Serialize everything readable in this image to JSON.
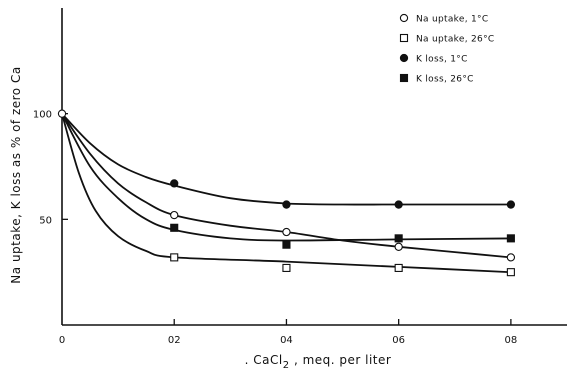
{
  "chart_data": {
    "type": "scatter",
    "title": "",
    "xlabel": ". CaCl2 , meq. per liter",
    "xlabel_main": ". CaCl",
    "xlabel_sub": "2",
    "xlabel_tail": " , meq. per liter",
    "ylabel": "Na uptake, K loss as % of zero Ca",
    "xlim": [
      0,
      0.09
    ],
    "ylim": [
      0,
      150
    ],
    "x_ticks": [
      0,
      0.02,
      0.04,
      0.06,
      0.08
    ],
    "x_tick_labels": [
      "0",
      "02",
      "04",
      "06",
      "08"
    ],
    "y_ticks": [
      50,
      100
    ],
    "y_tick_labels": [
      "50",
      "100"
    ],
    "legend_position": "top-right",
    "series": [
      {
        "name": "Na uptake, 1°C",
        "marker": "open-circle",
        "x": [
          0,
          0.02,
          0.04,
          0.06,
          0.08
        ],
        "y": [
          100,
          52,
          44,
          37,
          32
        ],
        "curve": [
          [
            0,
            100
          ],
          [
            0.005,
            81
          ],
          [
            0.01,
            67
          ],
          [
            0.015,
            58
          ],
          [
            0.02,
            52
          ],
          [
            0.03,
            47
          ],
          [
            0.04,
            44
          ],
          [
            0.05,
            40
          ],
          [
            0.06,
            37
          ],
          [
            0.07,
            34.5
          ],
          [
            0.08,
            32
          ]
        ]
      },
      {
        "name": "Na uptake, 26°C",
        "marker": "open-square",
        "x": [
          0,
          0.02,
          0.04,
          0.06,
          0.08
        ],
        "y": [
          100,
          32,
          27,
          27,
          25
        ],
        "curve": [
          [
            0,
            100
          ],
          [
            0.003,
            72
          ],
          [
            0.006,
            54
          ],
          [
            0.01,
            42
          ],
          [
            0.015,
            35
          ],
          [
            0.02,
            32
          ],
          [
            0.04,
            30
          ],
          [
            0.06,
            27.5
          ],
          [
            0.08,
            25
          ]
        ]
      },
      {
        "name": "K loss, 1°C",
        "marker": "filled-circle",
        "x": [
          0,
          0.02,
          0.04,
          0.06,
          0.08
        ],
        "y": [
          100,
          67,
          57,
          57,
          57
        ],
        "curve": [
          [
            0,
            100
          ],
          [
            0.005,
            86
          ],
          [
            0.01,
            76
          ],
          [
            0.015,
            70
          ],
          [
            0.02,
            66
          ],
          [
            0.03,
            60
          ],
          [
            0.04,
            57.5
          ],
          [
            0.05,
            57
          ],
          [
            0.06,
            57
          ],
          [
            0.08,
            57
          ]
        ]
      },
      {
        "name": "K loss, 26°C",
        "marker": "filled-square",
        "x": [
          0,
          0.02,
          0.04,
          0.06,
          0.08
        ],
        "y": [
          100,
          46,
          38,
          41,
          41
        ],
        "curve": [
          [
            0,
            100
          ],
          [
            0.005,
            75
          ],
          [
            0.01,
            60
          ],
          [
            0.015,
            50
          ],
          [
            0.02,
            45
          ],
          [
            0.03,
            41
          ],
          [
            0.04,
            40
          ],
          [
            0.06,
            40.5
          ],
          [
            0.08,
            41
          ]
        ]
      }
    ]
  }
}
